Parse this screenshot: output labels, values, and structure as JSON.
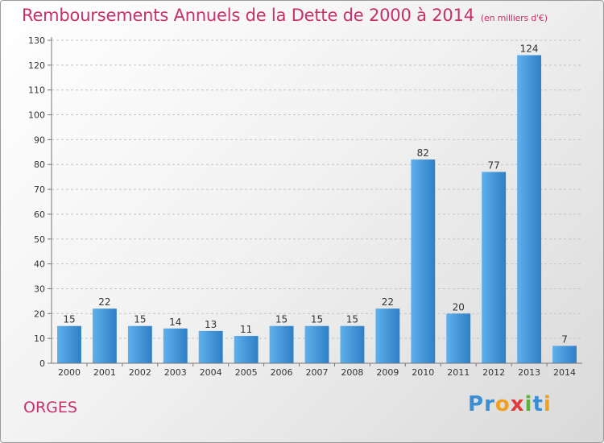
{
  "chart_data": {
    "type": "bar",
    "title": "Remboursements Annuels de la Dette de 2000 à 2014",
    "subtitle": "(en milliers d'€)",
    "categories": [
      "2000",
      "2001",
      "2002",
      "2003",
      "2004",
      "2005",
      "2006",
      "2007",
      "2008",
      "2009",
      "2010",
      "2011",
      "2012",
      "2013",
      "2014"
    ],
    "values": [
      15,
      22,
      15,
      14,
      13,
      11,
      15,
      15,
      15,
      22,
      82,
      20,
      77,
      124,
      7
    ],
    "xlabel": "",
    "ylabel": "",
    "ylim": [
      0,
      130
    ],
    "yticks": [
      0,
      10,
      20,
      30,
      40,
      50,
      60,
      70,
      80,
      90,
      100,
      110,
      120,
      130
    ],
    "grid": "horizontal-dashed",
    "bar_color": "#3d8fd6"
  },
  "footer": {
    "commune": "ORGES",
    "logo_letters": [
      {
        "ch": "P",
        "color": "#3a8fd4"
      },
      {
        "ch": "r",
        "color": "#3a8fd4"
      },
      {
        "ch": "o",
        "color": "#f0a020"
      },
      {
        "ch": "x",
        "color": "#e03a3a"
      },
      {
        "ch": "i",
        "color": "#5ab53a"
      },
      {
        "ch": "t",
        "color": "#3a8fd4"
      },
      {
        "ch": "i",
        "color": "#f0a020"
      }
    ]
  }
}
